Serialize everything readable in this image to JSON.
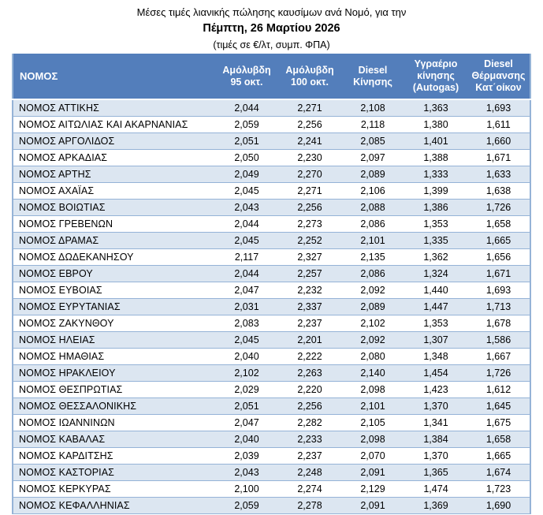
{
  "page": {
    "title_line1": "Μέσες τιμές λιανικής πώλησης καυσίμων ανά Νομό, για την",
    "title_line2": "Πέμπτη, 26 Μαρτίου 2026",
    "title_line3": "(τιμές σε €/λτ, συμπ. ΦΠΑ)"
  },
  "colors": {
    "header_bg": "#537EBB",
    "row_alt_bg": "#DCE6F1",
    "row_bg": "#FFFFFF",
    "border": "#95B3D7",
    "header_text": "#FFFFFF",
    "body_text": "#000000"
  },
  "table": {
    "columns": [
      {
        "id": "nomos",
        "label": "ΝΟΜΟΣ"
      },
      {
        "id": "unleaded-95",
        "label": "Αμόλυβδη\n95 οκτ."
      },
      {
        "id": "unleaded-100",
        "label": "Αμόλυβδη\n100 οκτ."
      },
      {
        "id": "diesel-kinisis",
        "label": "Diesel\nΚίνησης"
      },
      {
        "id": "autogas",
        "label": "Υγραέριο\nκίνησης\n(Autogas)"
      },
      {
        "id": "diesel-thermansis",
        "label": "Diesel\nΘέρμανσης\nΚατ΄οίκον"
      }
    ],
    "rows": [
      {
        "nomos": "ΝΟΜΟΣ ΑΤΤΙΚΗΣ",
        "values": [
          "2,044",
          "2,271",
          "2,108",
          "1,363",
          "1,693"
        ]
      },
      {
        "nomos": "ΝΟΜΟΣ ΑΙΤΩΛΙΑΣ ΚΑΙ ΑΚΑΡΝΑΝΙΑΣ",
        "values": [
          "2,059",
          "2,256",
          "2,118",
          "1,380",
          "1,611"
        ]
      },
      {
        "nomos": "ΝΟΜΟΣ ΑΡΓΟΛΙΔΟΣ",
        "values": [
          "2,051",
          "2,241",
          "2,085",
          "1,401",
          "1,660"
        ]
      },
      {
        "nomos": "ΝΟΜΟΣ ΑΡΚΑΔΙΑΣ",
        "values": [
          "2,050",
          "2,230",
          "2,097",
          "1,388",
          "1,671"
        ]
      },
      {
        "nomos": "ΝΟΜΟΣ ΑΡΤΗΣ",
        "values": [
          "2,049",
          "2,270",
          "2,089",
          "1,333",
          "1,633"
        ]
      },
      {
        "nomos": "ΝΟΜΟΣ ΑΧΑΪΑΣ",
        "values": [
          "2,045",
          "2,271",
          "2,106",
          "1,399",
          "1,638"
        ]
      },
      {
        "nomos": "ΝΟΜΟΣ ΒΟΙΩΤΙΑΣ",
        "values": [
          "2,043",
          "2,256",
          "2,088",
          "1,386",
          "1,726"
        ]
      },
      {
        "nomos": "ΝΟΜΟΣ ΓΡΕΒΕΝΩΝ",
        "values": [
          "2,044",
          "2,273",
          "2,086",
          "1,353",
          "1,658"
        ]
      },
      {
        "nomos": "ΝΟΜΟΣ ΔΡΑΜΑΣ",
        "values": [
          "2,045",
          "2,252",
          "2,101",
          "1,335",
          "1,665"
        ]
      },
      {
        "nomos": "ΝΟΜΟΣ ΔΩΔΕΚΑΝΗΣΟΥ",
        "values": [
          "2,117",
          "2,327",
          "2,135",
          "1,362",
          "1,656"
        ]
      },
      {
        "nomos": "ΝΟΜΟΣ ΕΒΡΟΥ",
        "values": [
          "2,044",
          "2,257",
          "2,086",
          "1,324",
          "1,671"
        ]
      },
      {
        "nomos": "ΝΟΜΟΣ ΕΥΒΟΙΑΣ",
        "values": [
          "2,047",
          "2,232",
          "2,092",
          "1,440",
          "1,693"
        ]
      },
      {
        "nomos": "ΝΟΜΟΣ ΕΥΡΥΤΑΝΙΑΣ",
        "values": [
          "2,031",
          "2,337",
          "2,089",
          "1,447",
          "1,713"
        ]
      },
      {
        "nomos": "ΝΟΜΟΣ ΖΑΚΥΝΘΟΥ",
        "values": [
          "2,083",
          "2,237",
          "2,102",
          "1,353",
          "1,678"
        ]
      },
      {
        "nomos": "ΝΟΜΟΣ ΗΛΕΙΑΣ",
        "values": [
          "2,045",
          "2,201",
          "2,092",
          "1,307",
          "1,586"
        ]
      },
      {
        "nomos": "ΝΟΜΟΣ ΗΜΑΘΙΑΣ",
        "values": [
          "2,040",
          "2,222",
          "2,080",
          "1,348",
          "1,667"
        ]
      },
      {
        "nomos": "ΝΟΜΟΣ ΗΡΑΚΛΕΙΟΥ",
        "values": [
          "2,102",
          "2,263",
          "2,140",
          "1,454",
          "1,726"
        ]
      },
      {
        "nomos": "ΝΟΜΟΣ ΘΕΣΠΡΩΤΙΑΣ",
        "values": [
          "2,029",
          "2,220",
          "2,098",
          "1,423",
          "1,612"
        ]
      },
      {
        "nomos": "ΝΟΜΟΣ ΘΕΣΣΑΛΟΝΙΚΗΣ",
        "values": [
          "2,051",
          "2,256",
          "2,101",
          "1,370",
          "1,645"
        ]
      },
      {
        "nomos": "ΝΟΜΟΣ ΙΩΑΝΝΙΝΩΝ",
        "values": [
          "2,047",
          "2,282",
          "2,105",
          "1,341",
          "1,675"
        ]
      },
      {
        "nomos": "ΝΟΜΟΣ ΚΑΒΑΛΑΣ",
        "values": [
          "2,040",
          "2,233",
          "2,098",
          "1,384",
          "1,658"
        ]
      },
      {
        "nomos": "ΝΟΜΟΣ ΚΑΡΔΙΤΣΗΣ",
        "values": [
          "2,039",
          "2,237",
          "2,070",
          "1,370",
          "1,665"
        ]
      },
      {
        "nomos": "ΝΟΜΟΣ ΚΑΣΤΟΡΙΑΣ",
        "values": [
          "2,043",
          "2,248",
          "2,091",
          "1,365",
          "1,674"
        ]
      },
      {
        "nomos": "ΝΟΜΟΣ ΚΕΡΚΥΡΑΣ",
        "values": [
          "2,100",
          "2,274",
          "2,129",
          "1,474",
          "1,723"
        ]
      },
      {
        "nomos": "ΝΟΜΟΣ ΚΕΦΑΛΛΗΝΙΑΣ",
        "values": [
          "2,059",
          "2,278",
          "2,091",
          "1,369",
          "1,690"
        ]
      }
    ]
  }
}
